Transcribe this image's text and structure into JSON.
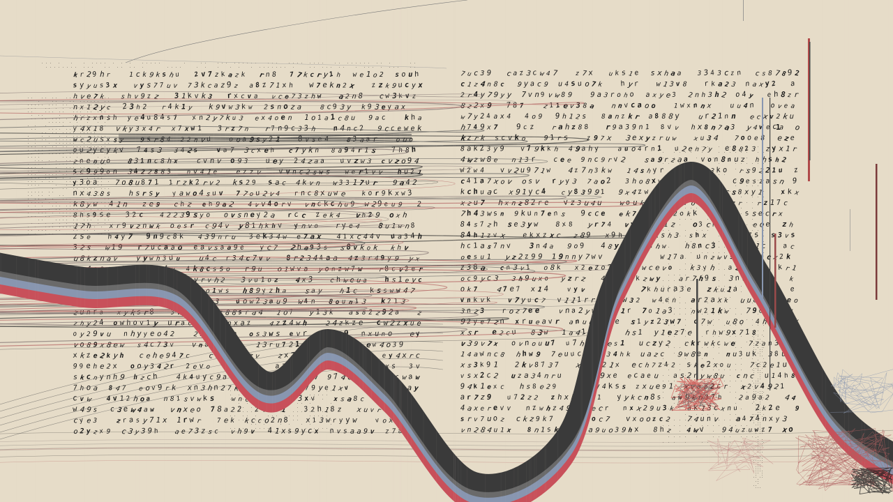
{
  "artwork": {
    "background_color": "#e6dcc8",
    "ribbon_colors": [
      "#3a3a3a",
      "#6a6a6a",
      "#8896b0",
      "#c8505a"
    ],
    "ink_color": "#1a1a1a",
    "thread_colors": [
      "#2a2a2a",
      "#7a6a6a",
      "#b05a5a",
      "#555555"
    ],
    "scribble_color": "#c84040",
    "glyph_text": [
      "2",
      "1",
      "3",
      "4",
      "7",
      "9",
      "8",
      "u",
      "n",
      "h",
      "z",
      "r",
      "v",
      "o",
      "a",
      "c",
      "w",
      "s",
      "e",
      "k",
      "x",
      "y"
    ],
    "sampled_rule": "1"
  }
}
